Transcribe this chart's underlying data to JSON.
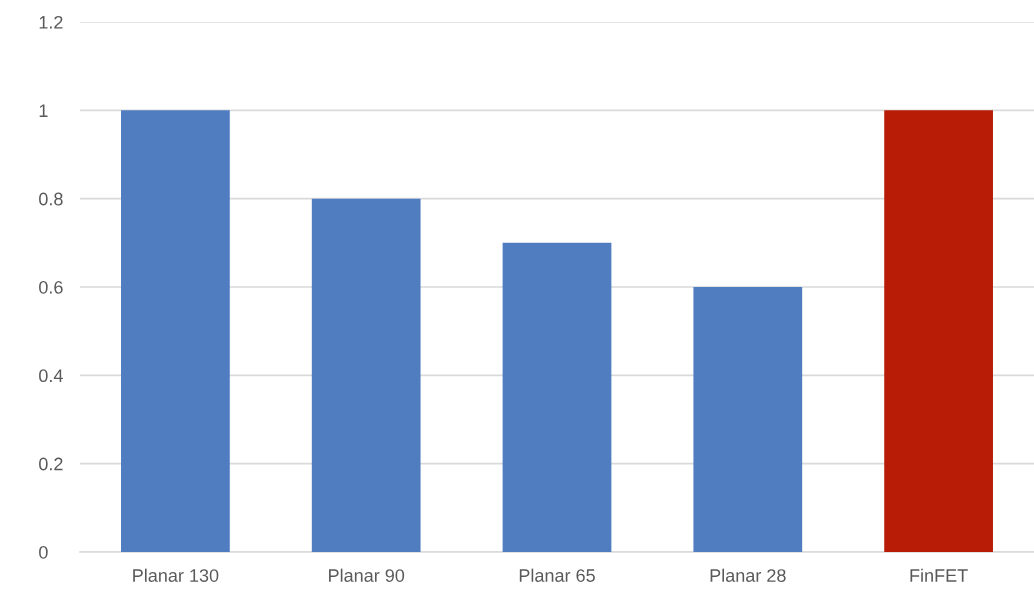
{
  "chart_data": {
    "type": "bar",
    "categories": [
      "Planar 130",
      "Planar 90",
      "Planar 65",
      "Planar 28",
      "FinFET"
    ],
    "values": [
      1,
      0.8,
      0.7,
      0.6,
      1
    ],
    "colors": [
      "#4f7dc0",
      "#4f7dc0",
      "#4f7dc0",
      "#4f7dc0",
      "#b81c07"
    ],
    "ylim": [
      0,
      1.2
    ],
    "yticks": [
      0,
      0.2,
      0.4,
      0.6,
      0.8,
      1,
      1.2
    ],
    "grid": "y"
  }
}
